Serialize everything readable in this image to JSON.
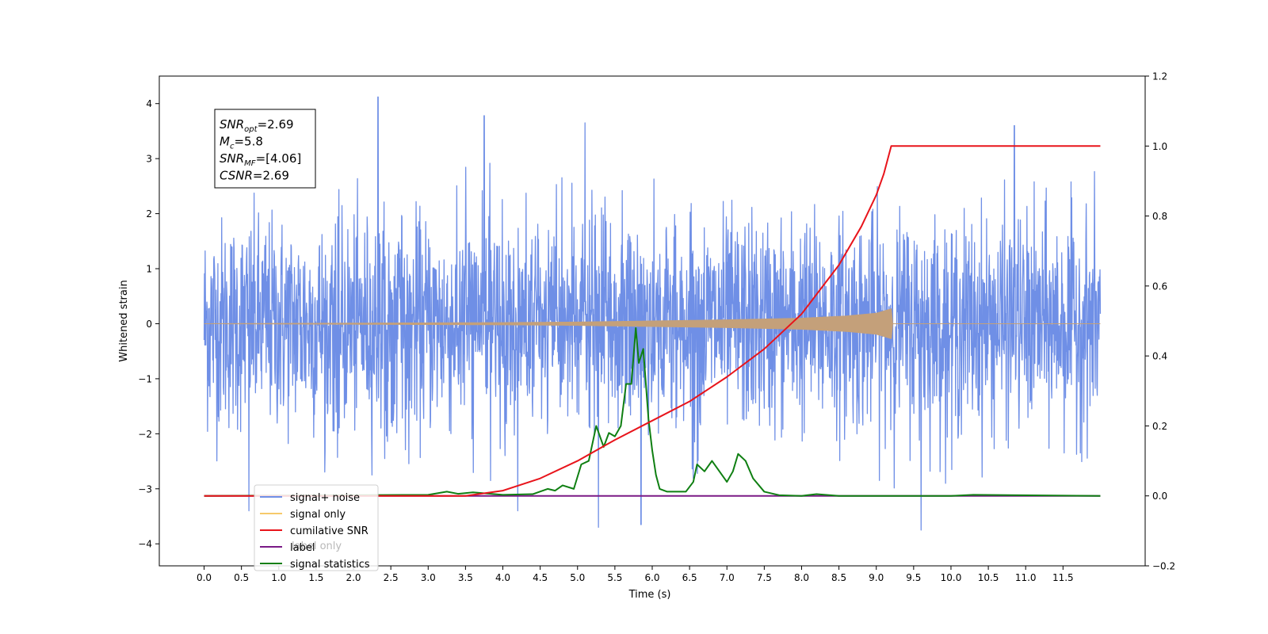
{
  "chart_data": {
    "type": "line",
    "xlabel": "Time (s)",
    "ylabel_left": "Whitened strain",
    "ylabel_right": "",
    "xlim": [
      -0.6,
      12.6
    ],
    "ylim_left": [
      -4.4,
      4.5
    ],
    "ylim_right": [
      -0.2,
      1.2
    ],
    "x_ticks": [
      "0.0",
      "0.5",
      "1.0",
      "1.5",
      "2.0",
      "2.5",
      "3.0",
      "3.5",
      "4.0",
      "4.5",
      "5.0",
      "5.5",
      "6.0",
      "6.5",
      "7.0",
      "7.5",
      "8.0",
      "8.5",
      "9.0",
      "9.5",
      "10.0",
      "10.5",
      "11.0",
      "11.5"
    ],
    "y_ticks_left": [
      "4",
      "3",
      "2",
      "1",
      "0",
      "−1",
      "−2",
      "−3",
      "−4"
    ],
    "y_ticks_right": [
      "1.2",
      "1.0",
      "0.8",
      "0.6",
      "0.4",
      "0.2",
      "0.0",
      "−0.2"
    ],
    "grid": false,
    "legend_position": "lower-left",
    "colors": {
      "signal_noise": "#6f8fe6",
      "signal_only": "#f6c96a",
      "signal_only_visible": "#c4a07a",
      "cumulative_snr": "#e8141b",
      "label": "#7a1a86",
      "signal_statistics": "#0f7f12"
    },
    "series": [
      {
        "name": "signal+ noise",
        "axis": "left",
        "description": "whitened noisy strain, values range approximately -3.7 to 4.1, dense oscillation over t = 0.0 to 12.0",
        "t_range": [
          0.0,
          12.0
        ],
        "amplitude_envelope": {
          "typical": 2.4,
          "max": 4.12,
          "min": -3.75
        },
        "notable_peaks": [
          [
            2.33,
            4.12
          ],
          [
            3.75,
            3.78
          ],
          [
            5.1,
            3.65
          ],
          [
            10.85,
            3.6
          ],
          [
            9.6,
            -3.75
          ],
          [
            5.28,
            -3.7
          ],
          [
            0.6,
            -3.4
          ],
          [
            4.2,
            -3.4
          ],
          [
            5.85,
            -3.65
          ]
        ]
      },
      {
        "name": "signal only",
        "axis": "left",
        "description": "chirp signal rising in amplitude, ending at about t = 9.2",
        "t_range": [
          0.0,
          12.0
        ],
        "envelope": [
          [
            0.0,
            0.0
          ],
          [
            4.0,
            0.02
          ],
          [
            5.0,
            0.03
          ],
          [
            6.0,
            0.05
          ],
          [
            7.0,
            0.07
          ],
          [
            8.0,
            0.1
          ],
          [
            8.6,
            0.14
          ],
          [
            9.0,
            0.19
          ],
          [
            9.2,
            0.27
          ],
          [
            9.21,
            0.0
          ],
          [
            12.0,
            0.0
          ]
        ]
      },
      {
        "name": "cumilative SNR",
        "axis": "right",
        "x": [
          0.0,
          3.5,
          4.0,
          4.5,
          5.0,
          5.5,
          6.0,
          6.5,
          7.0,
          7.5,
          8.0,
          8.5,
          8.8,
          9.0,
          9.1,
          9.2,
          12.0
        ],
        "y": [
          0.0,
          0.0,
          0.015,
          0.05,
          0.1,
          0.16,
          0.215,
          0.27,
          0.34,
          0.42,
          0.52,
          0.66,
          0.77,
          0.86,
          0.92,
          1.0,
          1.0
        ]
      },
      {
        "name": "label",
        "axis": "right",
        "x": [
          0.0,
          12.0
        ],
        "y": [
          0.0,
          0.0
        ]
      },
      {
        "name": "signal statistics",
        "axis": "right",
        "x": [
          0.0,
          3.0,
          3.25,
          3.4,
          3.6,
          4.0,
          4.4,
          4.6,
          4.7,
          4.8,
          4.95,
          5.05,
          5.15,
          5.25,
          5.35,
          5.42,
          5.5,
          5.58,
          5.65,
          5.72,
          5.78,
          5.82,
          5.88,
          5.95,
          6.0,
          6.05,
          6.1,
          6.2,
          6.3,
          6.45,
          6.55,
          6.6,
          6.7,
          6.8,
          6.9,
          7.0,
          7.08,
          7.15,
          7.25,
          7.35,
          7.5,
          7.7,
          8.0,
          8.2,
          8.5,
          10.0,
          10.3,
          12.0
        ],
        "y": [
          0.0,
          0.003,
          0.012,
          0.006,
          0.01,
          0.003,
          0.005,
          0.02,
          0.015,
          0.03,
          0.02,
          0.09,
          0.1,
          0.2,
          0.14,
          0.18,
          0.17,
          0.2,
          0.32,
          0.32,
          0.48,
          0.38,
          0.42,
          0.22,
          0.13,
          0.06,
          0.02,
          0.012,
          0.012,
          0.012,
          0.04,
          0.09,
          0.07,
          0.1,
          0.07,
          0.04,
          0.07,
          0.12,
          0.1,
          0.05,
          0.012,
          0.002,
          0.0,
          0.005,
          0.0,
          0.0,
          0.003,
          0.0
        ]
      }
    ],
    "annotation": {
      "lines": [
        {
          "main": "SNR",
          "sub": "opt",
          "value": "=2.69"
        },
        {
          "main": "M",
          "sub": "c",
          "value": "=5.8"
        },
        {
          "main": "SNR",
          "sub": "MF",
          "value": "=[4.06]"
        },
        {
          "main": "CSNR",
          "sub": "",
          "value": "=2.69"
        }
      ]
    },
    "legend": [
      "signal+ noise",
      "signal only",
      "cumilative SNR",
      "label",
      "signal statistics"
    ],
    "legend_overlap_text": "label only"
  }
}
